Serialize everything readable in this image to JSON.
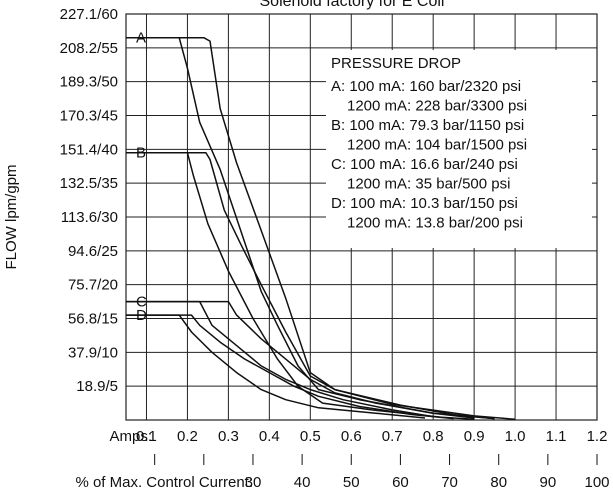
{
  "chart_data": {
    "type": "line",
    "title": "Solenoid factory for E Coil",
    "ylabel": "FLOW lpm/gpm",
    "y_tick_labels": [
      "227.1/60",
      "208.2/55",
      "189.3/50",
      "170.3/45",
      "151.4/40",
      "132.5/35",
      "113.6/30",
      "94.6/25",
      "75.7/20",
      "56.8/15",
      "37.9/10",
      "18.9/5"
    ],
    "ylim_gpm": [
      0,
      60
    ],
    "amps_label": "Amps:",
    "amps_tick_labels": [
      "0.1",
      "0.2",
      "0.3",
      "0.4",
      "0.5",
      "0.6",
      "0.7",
      "0.8",
      "0.9",
      "1.0",
      "1.1",
      "1.2"
    ],
    "xlim_amps": [
      0.05,
      1.2
    ],
    "pct_label": "% of Max. Control Current:",
    "pct_tick_labels": [
      "30",
      "40",
      "50",
      "60",
      "70",
      "80",
      "90",
      "100"
    ],
    "grid": true,
    "legend": {
      "title": "PRESSURE DROP",
      "lines": [
        "A: 100 mA:   160 bar/2320 psi",
        "1200 mA:  228 bar/3300 psi",
        "B: 100 mA:    79.3 bar/1150 psi",
        "1200 mA: 104 bar/1500 psi",
        "C: 100 mA:   16.6 bar/240 psi",
        "1200 mA: 35 bar/500 psi",
        "D: 100 mA:   10.3 bar/150 psi",
        "1200 mA: 13.8 bar/200 psi"
      ]
    },
    "series": [
      {
        "name": "A",
        "start_gpm": 56.5,
        "paths": [
          [
            [
              0.05,
              56.5
            ],
            [
              0.24,
              56.5
            ],
            [
              0.255,
              56
            ],
            [
              0.28,
              46
            ],
            [
              0.32,
              38
            ],
            [
              0.38,
              28
            ],
            [
              0.44,
              18
            ],
            [
              0.5,
              7
            ],
            [
              0.56,
              4.5
            ],
            [
              0.7,
              2.3
            ],
            [
              0.9,
              0.6
            ],
            [
              1.0,
              0.1
            ]
          ],
          [
            [
              0.05,
              56.5
            ],
            [
              0.18,
              56.5
            ],
            [
              0.2,
              52
            ],
            [
              0.23,
              44
            ],
            [
              0.28,
              37
            ],
            [
              0.33,
              28
            ],
            [
              0.38,
              19
            ],
            [
              0.42,
              14
            ],
            [
              0.47,
              8
            ],
            [
              0.52,
              4.5
            ],
            [
              0.62,
              3
            ],
            [
              0.8,
              1
            ],
            [
              0.95,
              0.2
            ]
          ]
        ]
      },
      {
        "name": "B",
        "start_gpm": 39.5,
        "paths": [
          [
            [
              0.05,
              39.5
            ],
            [
              0.245,
              39.5
            ],
            [
              0.255,
              38.5
            ],
            [
              0.29,
              31
            ],
            [
              0.33,
              26
            ],
            [
              0.38,
              20
            ],
            [
              0.44,
              13
            ],
            [
              0.5,
              6.5
            ],
            [
              0.56,
              4.5
            ],
            [
              0.72,
              2.2
            ],
            [
              0.85,
              0.8
            ],
            [
              0.95,
              0.2
            ]
          ],
          [
            [
              0.05,
              39.5
            ],
            [
              0.2,
              39.5
            ],
            [
              0.215,
              36
            ],
            [
              0.25,
              29
            ],
            [
              0.3,
              22
            ],
            [
              0.36,
              15
            ],
            [
              0.42,
              9
            ],
            [
              0.47,
              5
            ],
            [
              0.53,
              2.5
            ],
            [
              0.65,
              1.5
            ],
            [
              0.82,
              0.4
            ],
            [
              0.9,
              0.1
            ]
          ]
        ]
      },
      {
        "name": "C",
        "start_gpm": 17.5,
        "paths": [
          [
            [
              0.05,
              17.5
            ],
            [
              0.3,
              17.5
            ],
            [
              0.32,
              15.5
            ],
            [
              0.38,
              12
            ],
            [
              0.44,
              9
            ],
            [
              0.5,
              6
            ],
            [
              0.56,
              4
            ],
            [
              0.66,
              2.5
            ],
            [
              0.8,
              1
            ],
            [
              0.9,
              0.3
            ]
          ],
          [
            [
              0.05,
              17.5
            ],
            [
              0.23,
              17.5
            ],
            [
              0.26,
              14
            ],
            [
              0.32,
              11
            ],
            [
              0.38,
              8
            ],
            [
              0.44,
              6
            ],
            [
              0.5,
              4.5
            ],
            [
              0.58,
              3
            ],
            [
              0.7,
              1.5
            ],
            [
              0.8,
              0.5
            ]
          ]
        ]
      },
      {
        "name": "D",
        "start_gpm": 15.5,
        "paths": [
          [
            [
              0.05,
              15.5
            ],
            [
              0.21,
              15.5
            ],
            [
              0.23,
              14
            ],
            [
              0.28,
              11.5
            ],
            [
              0.34,
              9
            ],
            [
              0.4,
              7
            ],
            [
              0.46,
              5
            ],
            [
              0.52,
              3.5
            ],
            [
              0.62,
              2
            ],
            [
              0.75,
              0.8
            ],
            [
              0.85,
              0.2
            ]
          ],
          [
            [
              0.05,
              15.5
            ],
            [
              0.18,
              15.5
            ],
            [
              0.21,
              13
            ],
            [
              0.26,
              10
            ],
            [
              0.32,
              7
            ],
            [
              0.38,
              4.5
            ],
            [
              0.44,
              3
            ],
            [
              0.52,
              1.8
            ],
            [
              0.66,
              1
            ],
            [
              0.78,
              0.3
            ]
          ]
        ]
      }
    ]
  }
}
